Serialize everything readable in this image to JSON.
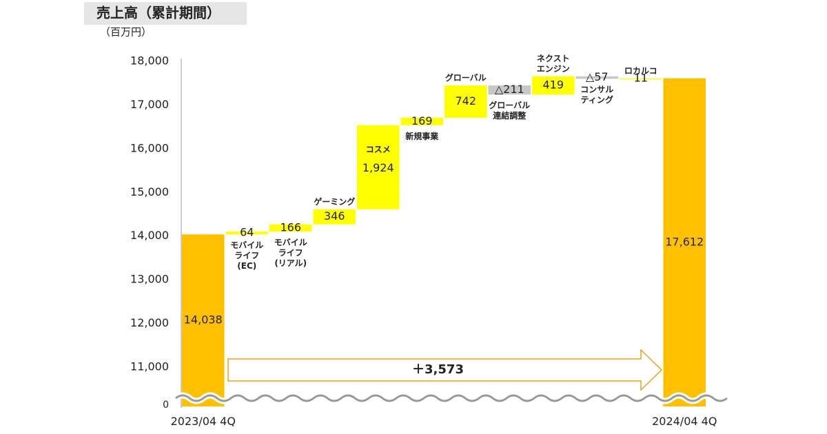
{
  "chart_data": {
    "type": "waterfall",
    "title": "売上高（累計期間）",
    "unit": "（百万円）",
    "categories": [
      "2023/04 4Q",
      "モバイル\nライフ\n(EC)",
      "モバイル\nライフ\n(リアル)",
      "ゲーミング",
      "コスメ",
      "新規事業",
      "グローバル",
      "グローバル\n連結調整",
      "ネクスト\nエンジン",
      "コンサル\nティング",
      "ロカルコ",
      "2024/04 4Q"
    ],
    "measures": [
      "total",
      "delta",
      "delta",
      "delta",
      "delta",
      "delta",
      "delta",
      "delta",
      "delta",
      "delta",
      "delta",
      "total"
    ],
    "values": [
      14038,
      64,
      166,
      346,
      1924,
      169,
      742,
      -211,
      419,
      -57,
      11,
      17612
    ],
    "value_labels": [
      "14,038",
      "64",
      "166",
      "346",
      "1,924",
      "169",
      "742",
      "△211",
      "419",
      "△57",
      "11",
      "17,612"
    ],
    "colors": {
      "total": "#ffc000",
      "increase": "#ffff00",
      "decrease": "#c8c8c8"
    },
    "total_change": {
      "value": 3573,
      "label": "＋3,573"
    },
    "ylim": [
      10100,
      18000
    ],
    "yticks": [
      {
        "value": 11000,
        "label": "11,000"
      },
      {
        "value": 12000,
        "label": "12,000"
      },
      {
        "value": 13000,
        "label": "13,000"
      },
      {
        "value": 14000,
        "label": "14,000"
      },
      {
        "value": 15000,
        "label": "15,000"
      },
      {
        "value": 16000,
        "label": "16,000"
      },
      {
        "value": 17000,
        "label": "17,000"
      },
      {
        "value": 18000,
        "label": "18,000"
      }
    ],
    "axis_break_tick": 0
  }
}
